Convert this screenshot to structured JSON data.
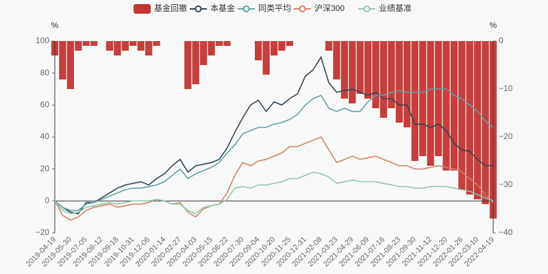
{
  "chart_data": {
    "type": "bar-line",
    "y_label": "%",
    "y2_label": "%",
    "categories": [
      "2019-04-19",
      null,
      "2019-05-30",
      null,
      "2019-07-05",
      null,
      "2019-08-12",
      null,
      "2019-09-18",
      null,
      "2019-10-31",
      null,
      "2019-12-06",
      null,
      "2020-01-14",
      null,
      "2020-02-27",
      null,
      "2020-04-03",
      null,
      "2020-05-15",
      null,
      "2020-06-22",
      null,
      "2020-07-30",
      null,
      "2020-09-04",
      null,
      "2020-10-20",
      null,
      "2020-11-25",
      null,
      "2020-12-31",
      null,
      "2021-02-08",
      null,
      "2021-03-23",
      null,
      "2021-04-29",
      null,
      "2021-06-09",
      null,
      "2021-07-16",
      null,
      "2021-08-23",
      null,
      "2021-09-30",
      null,
      "2021-11-12",
      null,
      "2021-12-20",
      null,
      "2022-01-26",
      null,
      "2022-03-10",
      null,
      "2022-04-19"
    ],
    "ylim": [
      -20,
      100
    ],
    "yticks": [
      {
        "value": -20,
        "label": "−20"
      },
      0,
      20,
      40,
      60,
      80,
      100
    ],
    "y2lim": [
      -40,
      0
    ],
    "y2ticks": [
      {
        "value": -40,
        "label": "−40"
      },
      {
        "value": -30,
        "label": "−30"
      },
      {
        "value": -20,
        "label": "−20"
      },
      {
        "value": -10,
        "label": "−10"
      },
      0
    ],
    "series": [
      {
        "name": "基金回撤",
        "type": "bar",
        "axis": "y2",
        "color": "#c23531",
        "values": [
          -3,
          -8,
          -10,
          -2,
          -1,
          -1,
          0,
          -2,
          -3,
          -2,
          -1,
          -2,
          -3,
          -1,
          0,
          0,
          0,
          -10,
          -9,
          -5,
          -3,
          -1,
          -1,
          0,
          0,
          0,
          -4,
          -7,
          -3,
          -2,
          -1,
          0,
          0,
          0,
          0,
          -2,
          -8,
          -12,
          -13,
          -11,
          -12,
          -14,
          -16,
          -14,
          -17,
          -18,
          -25,
          -24,
          -26,
          -24,
          -27,
          -27,
          -31,
          -32,
          -33,
          -34,
          -37
        ]
      },
      {
        "name": "本基金",
        "type": "line",
        "color": "#2f4554",
        "values": [
          0,
          -4,
          -7,
          -8,
          -1,
          -1,
          2,
          5,
          8,
          10,
          11,
          12,
          10,
          14,
          17,
          22,
          26,
          18,
          22,
          23,
          24,
          26,
          33,
          43,
          52,
          60,
          63,
          56,
          62,
          60,
          64,
          67,
          78,
          82,
          90,
          74,
          68,
          69,
          70,
          68,
          66,
          68,
          64,
          64,
          60,
          60,
          48,
          48,
          46,
          48,
          44,
          36,
          32,
          31,
          26,
          22,
          22
        ]
      },
      {
        "name": "同类平均",
        "type": "line",
        "color": "#61a0a8",
        "values": [
          0,
          -4,
          -6,
          -6,
          -2,
          -1,
          1,
          3,
          5,
          7,
          8,
          8,
          9,
          10,
          12,
          16,
          20,
          14,
          17,
          19,
          21,
          24,
          30,
          35,
          42,
          44,
          46,
          46,
          48,
          49,
          51,
          54,
          60,
          64,
          66,
          58,
          56,
          58,
          56,
          56,
          62,
          66,
          66,
          68,
          69,
          68,
          68,
          68,
          70,
          70,
          70,
          66,
          64,
          60,
          56,
          50,
          46
        ]
      },
      {
        "name": "沪深300",
        "type": "line",
        "color": "#d48265",
        "values": [
          0,
          -9,
          -12,
          -10,
          -6,
          -4,
          -3,
          -2,
          -4,
          -3,
          -2,
          -2,
          -1,
          1,
          0,
          -2,
          -1,
          -7,
          -10,
          -5,
          -3,
          -2,
          5,
          16,
          24,
          22,
          25,
          26,
          28,
          30,
          34,
          34,
          36,
          38,
          40,
          32,
          24,
          26,
          28,
          26,
          27,
          28,
          26,
          24,
          22,
          22,
          20,
          20,
          21,
          22,
          21,
          20,
          18,
          14,
          10,
          4,
          -1
        ]
      },
      {
        "name": "业绩基准",
        "type": "line",
        "color": "#91c7ae",
        "values": [
          0,
          -6,
          -8,
          -7,
          -4,
          -3,
          -2,
          -1,
          -2,
          -1,
          0,
          0,
          0,
          1,
          0,
          -2,
          -2,
          -6,
          -8,
          -4,
          -3,
          -2,
          1,
          8,
          9,
          8,
          10,
          10,
          11,
          12,
          14,
          14,
          16,
          18,
          17,
          15,
          11,
          12,
          13,
          12,
          12,
          12,
          11,
          10,
          9,
          9,
          8,
          8,
          9,
          9,
          9,
          8,
          7,
          6,
          4,
          2,
          0
        ]
      }
    ]
  }
}
